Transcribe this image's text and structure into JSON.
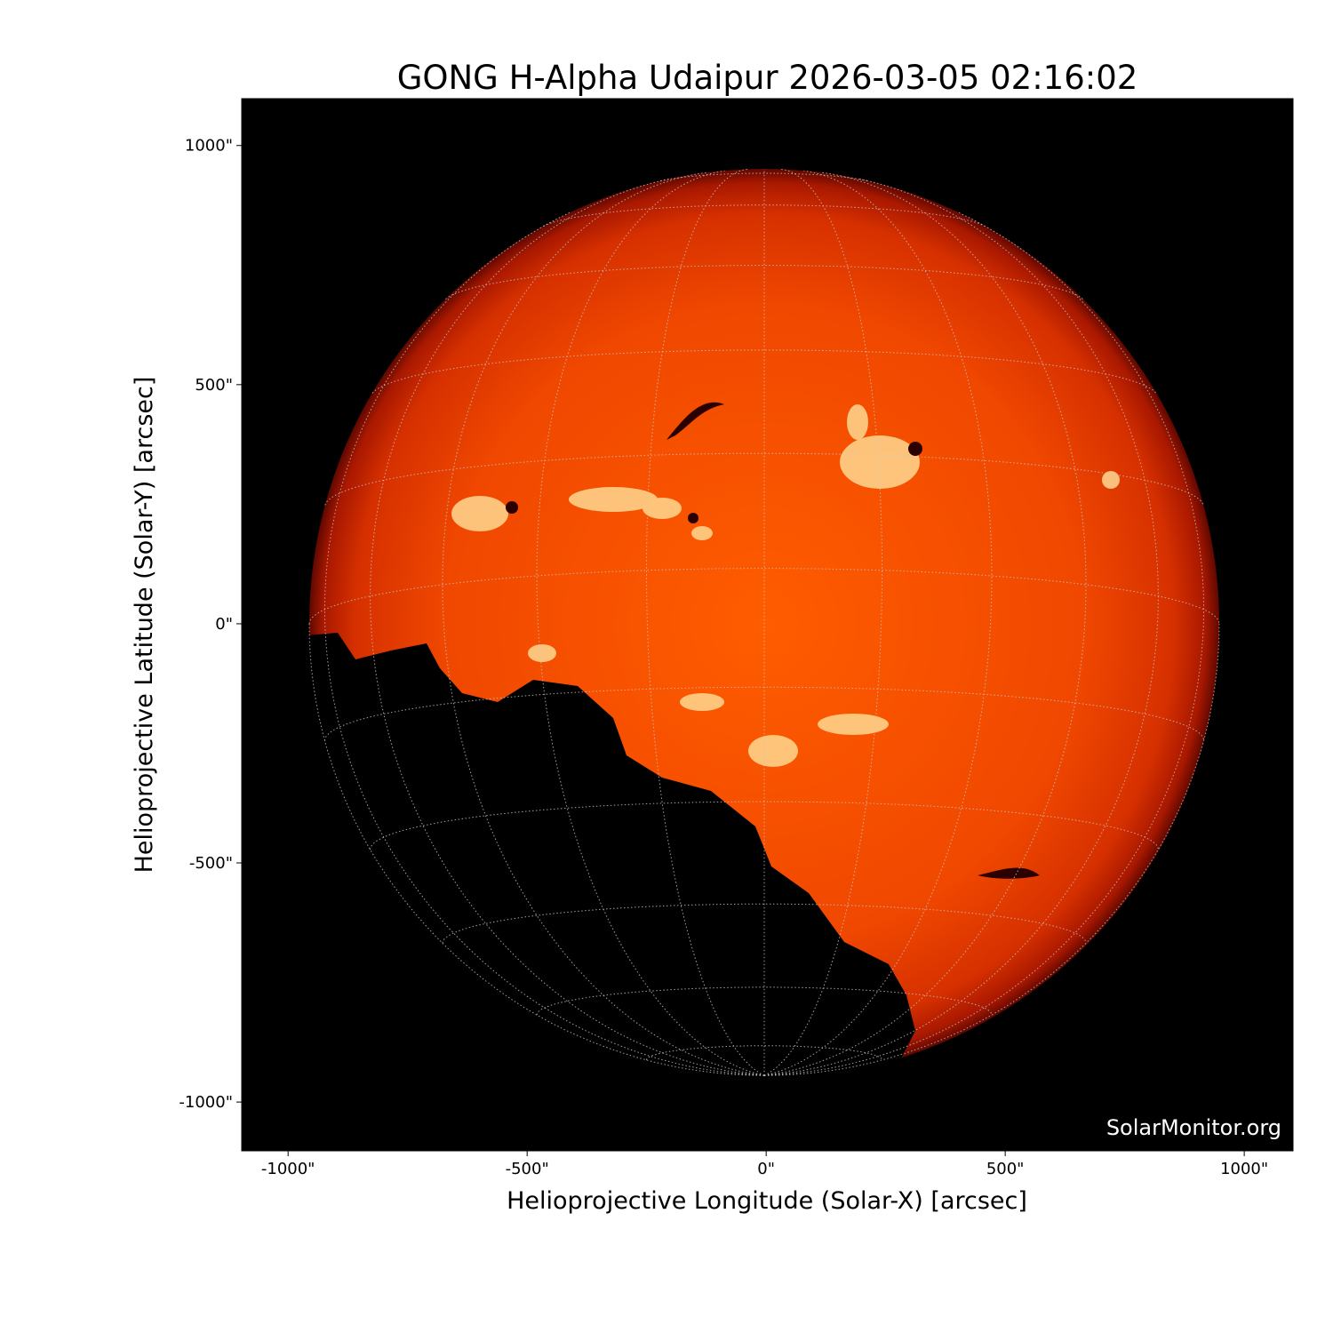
{
  "title": "GONG H-Alpha Udaipur 2026-03-05 02:16:02",
  "watermark": "SolarMonitor.org",
  "colors": {
    "disk_core": "#ff5a00",
    "disk_limb": "#8a0d00",
    "background": "#000000",
    "plage": "#ffe0a0",
    "grid": "#c8c8c8"
  },
  "chart_data": {
    "type": "heatmap",
    "title": "GONG H-Alpha Udaipur 2026-03-05 02:16:02",
    "xlabel": "Helioprojective Longitude (Solar-X) [arcsec]",
    "ylabel": "Helioprojective Latitude (Solar-Y) [arcsec]",
    "xlim": [
      -1097,
      1102
    ],
    "ylim": [
      -1102,
      1098
    ],
    "xticks": [
      {
        "value": -1000,
        "label": "-1000\""
      },
      {
        "value": -500,
        "label": "-500\""
      },
      {
        "value": 0,
        "label": "0\""
      },
      {
        "value": 500,
        "label": "500\""
      },
      {
        "value": 1000,
        "label": "1000\""
      }
    ],
    "yticks": [
      {
        "value": 1000,
        "label": "1000\""
      },
      {
        "value": 500,
        "label": "500\""
      },
      {
        "value": 0,
        "label": "0\""
      },
      {
        "value": -500,
        "label": "-500\""
      },
      {
        "value": -1000,
        "label": "-1000\""
      }
    ],
    "solar_radius_arcsec": 961,
    "grid": "heliographic, dotted, 15 degree spacing",
    "colormap": "red-orange H-alpha"
  }
}
